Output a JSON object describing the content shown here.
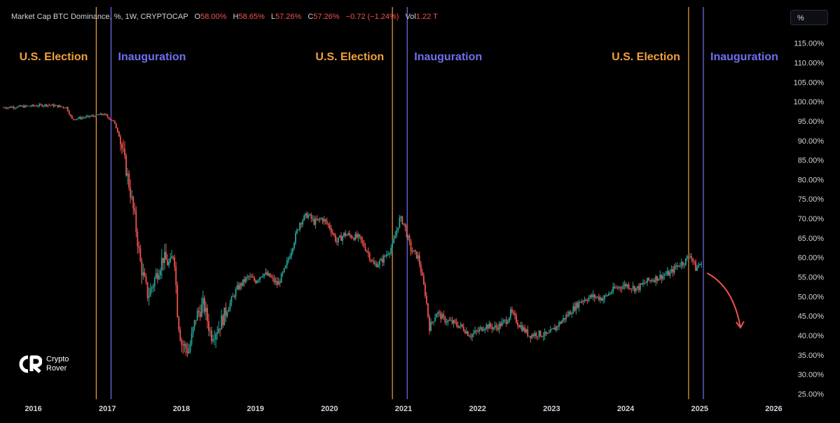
{
  "header": {
    "symbol": "Market Cap BTC Dominance, %, 1W, CRYPTOCAP",
    "o_label": "O",
    "o_value": "58.00%",
    "h_label": "H",
    "h_value": "58.65%",
    "l_label": "L",
    "l_value": "57.26%",
    "c_label": "C",
    "c_value": "57.26%",
    "change": "−0.72 (−1.24%)",
    "vol_label": "Vol",
    "vol_value": "1.22 T"
  },
  "unit_button": "%",
  "logo": {
    "line1": "Crypto",
    "line2": "Rover"
  },
  "colors": {
    "up": "#26a69a",
    "down": "#ef5350",
    "election": "#f0a040",
    "inauguration": "#6f6ff0",
    "axis_text": "#d1d4dc",
    "arrow": "#ef5350"
  },
  "chart_data": {
    "type": "candlestick",
    "y_unit": "%",
    "ylim": [
      24,
      118
    ],
    "xlim": [
      2015.55,
      2026.1
    ],
    "y_ticks": [
      "25.00%",
      "30.00%",
      "35.00%",
      "40.00%",
      "45.00%",
      "50.00%",
      "55.00%",
      "60.00%",
      "65.00%",
      "70.00%",
      "75.00%",
      "80.00%",
      "85.00%",
      "90.00%",
      "95.00%",
      "100.00%",
      "105.00%",
      "110.00%",
      "115.00%"
    ],
    "y_tick_values": [
      25,
      30,
      35,
      40,
      45,
      50,
      55,
      60,
      65,
      70,
      75,
      80,
      85,
      90,
      95,
      100,
      105,
      110,
      115
    ],
    "x_ticks": [
      "2016",
      "2017",
      "2018",
      "2019",
      "2020",
      "2021",
      "2022",
      "2023",
      "2024",
      "2025",
      "2026"
    ],
    "x_tick_values": [
      2016,
      2017,
      2018,
      2019,
      2020,
      2021,
      2022,
      2023,
      2024,
      2025,
      2026
    ],
    "events": [
      {
        "label": "U.S. Election",
        "date": 2016.85,
        "type": "election"
      },
      {
        "label": "Inauguration",
        "date": 2017.05,
        "type": "inauguration"
      },
      {
        "label": "U.S. Election",
        "date": 2020.85,
        "type": "election"
      },
      {
        "label": "Inauguration",
        "date": 2021.05,
        "type": "inauguration"
      },
      {
        "label": "U.S. Election",
        "date": 2024.85,
        "type": "election"
      },
      {
        "label": "Inauguration",
        "date": 2025.05,
        "type": "inauguration"
      }
    ],
    "series_anchors": [
      [
        2015.6,
        98.5
      ],
      [
        2015.9,
        98.8
      ],
      [
        2016.2,
        99.2
      ],
      [
        2016.45,
        98.5
      ],
      [
        2016.52,
        95.5
      ],
      [
        2016.7,
        96.0
      ],
      [
        2016.95,
        96.8
      ],
      [
        2017.08,
        95.0
      ],
      [
        2017.15,
        92.0
      ],
      [
        2017.22,
        86.0
      ],
      [
        2017.3,
        78.0
      ],
      [
        2017.37,
        70.0
      ],
      [
        2017.45,
        58.0
      ],
      [
        2017.55,
        50.0
      ],
      [
        2017.65,
        55.0
      ],
      [
        2017.75,
        60.0
      ],
      [
        2017.85,
        58.0
      ],
      [
        2017.9,
        62.0
      ],
      [
        2017.95,
        45.0
      ],
      [
        2018.0,
        38.0
      ],
      [
        2018.1,
        36.0
      ],
      [
        2018.2,
        45.0
      ],
      [
        2018.3,
        48.0
      ],
      [
        2018.4,
        40.0
      ],
      [
        2018.5,
        42.0
      ],
      [
        2018.6,
        46.0
      ],
      [
        2018.75,
        52.0
      ],
      [
        2018.9,
        55.0
      ],
      [
        2019.0,
        54.0
      ],
      [
        2019.1,
        56.0
      ],
      [
        2019.2,
        55.0
      ],
      [
        2019.3,
        53.0
      ],
      [
        2019.4,
        57.0
      ],
      [
        2019.5,
        63.0
      ],
      [
        2019.6,
        69.0
      ],
      [
        2019.7,
        71.0
      ],
      [
        2019.8,
        69.0
      ],
      [
        2019.9,
        70.0
      ],
      [
        2020.0,
        68.0
      ],
      [
        2020.1,
        64.0
      ],
      [
        2020.2,
        66.0
      ],
      [
        2020.3,
        65.5
      ],
      [
        2020.4,
        65.0
      ],
      [
        2020.5,
        62.0
      ],
      [
        2020.6,
        58.0
      ],
      [
        2020.7,
        59.0
      ],
      [
        2020.85,
        63.0
      ],
      [
        2020.95,
        70.0
      ],
      [
        2021.0,
        69.0
      ],
      [
        2021.1,
        62.0
      ],
      [
        2021.2,
        60.0
      ],
      [
        2021.3,
        50.0
      ],
      [
        2021.35,
        42.0
      ],
      [
        2021.45,
        46.0
      ],
      [
        2021.55,
        44.0
      ],
      [
        2021.7,
        43.0
      ],
      [
        2021.8,
        42.0
      ],
      [
        2021.9,
        40.0
      ],
      [
        2022.0,
        41.0
      ],
      [
        2022.1,
        42.5
      ],
      [
        2022.25,
        42.0
      ],
      [
        2022.4,
        44.0
      ],
      [
        2022.45,
        46.0
      ],
      [
        2022.55,
        43.0
      ],
      [
        2022.7,
        40.0
      ],
      [
        2022.8,
        40.5
      ],
      [
        2022.95,
        40.0
      ],
      [
        2023.1,
        43.0
      ],
      [
        2023.25,
        46.0
      ],
      [
        2023.4,
        49.0
      ],
      [
        2023.55,
        50.0
      ],
      [
        2023.7,
        49.5
      ],
      [
        2023.85,
        52.0
      ],
      [
        2024.0,
        53.0
      ],
      [
        2024.15,
        52.0
      ],
      [
        2024.3,
        54.0
      ],
      [
        2024.45,
        55.0
      ],
      [
        2024.6,
        56.0
      ],
      [
        2024.7,
        58.0
      ],
      [
        2024.8,
        59.0
      ],
      [
        2024.87,
        61.0
      ],
      [
        2024.95,
        57.0
      ],
      [
        2025.0,
        58.5
      ],
      [
        2025.04,
        57.26
      ]
    ],
    "projection_arrow": {
      "from": [
        2025.1,
        56.0
      ],
      "to": [
        2025.55,
        42.0
      ]
    }
  }
}
